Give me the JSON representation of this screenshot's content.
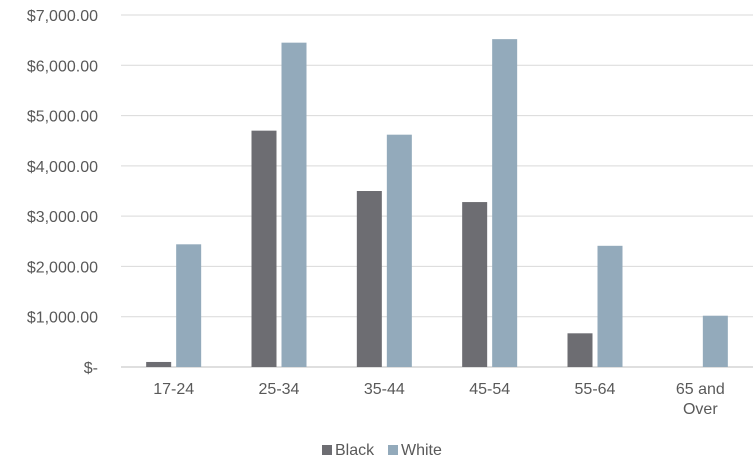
{
  "chart_data": {
    "type": "bar",
    "categories": [
      "17-24",
      "25-34",
      "35-44",
      "45-54",
      "55-64",
      "65 and Over"
    ],
    "series": [
      {
        "name": "Black",
        "color": "#6d6d72",
        "values": [
          100,
          4700,
          3500,
          3280,
          670,
          0
        ]
      },
      {
        "name": "White",
        "color": "#93aabb",
        "values": [
          2440,
          6450,
          4620,
          6520,
          2410,
          1020
        ]
      }
    ],
    "ylim": [
      0,
      7000
    ],
    "yticks": [
      0,
      1000,
      2000,
      3000,
      4000,
      5000,
      6000,
      7000
    ],
    "ytick_labels": [
      "$-",
      "$1,000.00",
      "$2,000.00",
      "$3,000.00",
      "$4,000.00",
      "$5,000.00",
      "$6,000.00",
      "$7,000.00"
    ],
    "grid": true,
    "legend_position": "bottom"
  }
}
